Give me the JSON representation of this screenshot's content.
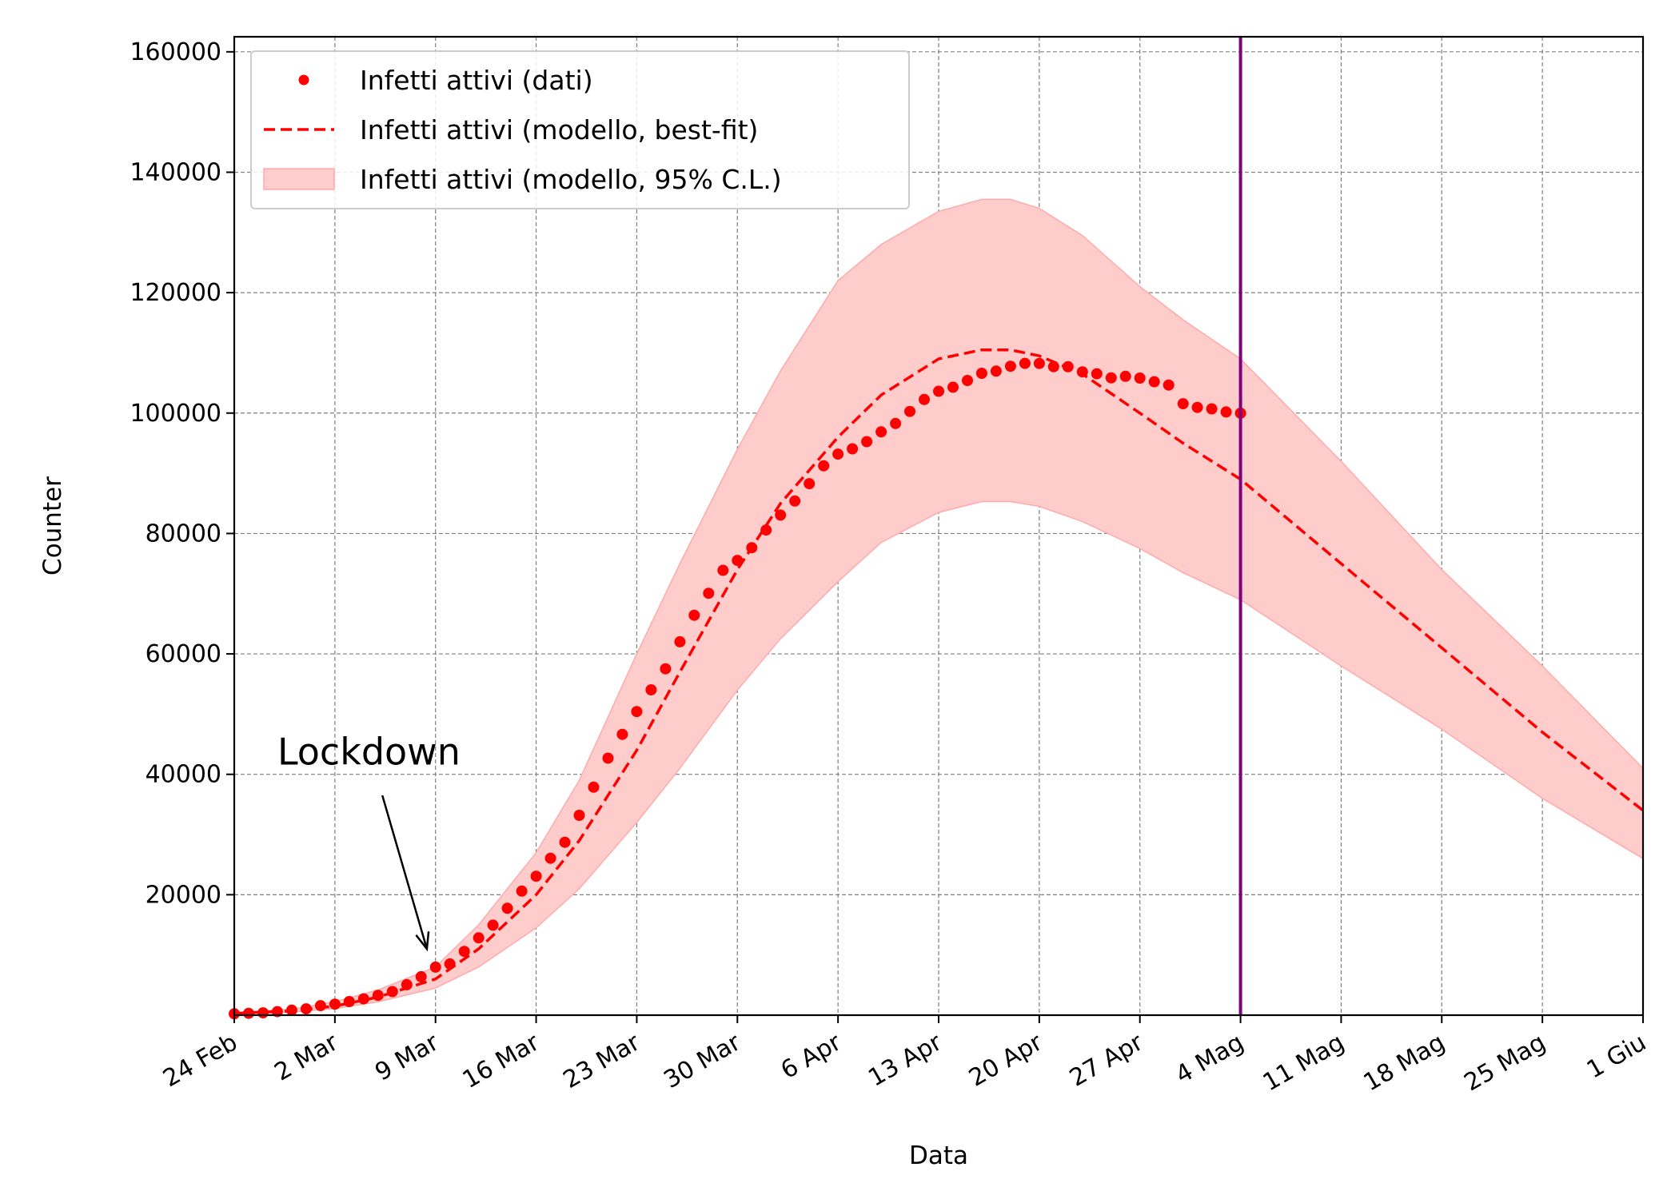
{
  "chart_data": {
    "type": "line",
    "xlabel": "Data",
    "ylabel": "Counter",
    "xlim": [
      0,
      98
    ],
    "ylim": [
      0,
      162500
    ],
    "grid": true,
    "legend_placement": "top-left",
    "x_ticks": [
      {
        "day": 0,
        "label": "24 Feb"
      },
      {
        "day": 7,
        "label": "2 Mar"
      },
      {
        "day": 14,
        "label": "9 Mar"
      },
      {
        "day": 21,
        "label": "16 Mar"
      },
      {
        "day": 28,
        "label": "23 Mar"
      },
      {
        "day": 35,
        "label": "30 Mar"
      },
      {
        "day": 42,
        "label": "6 Apr"
      },
      {
        "day": 49,
        "label": "13 Apr"
      },
      {
        "day": 56,
        "label": "20 Apr"
      },
      {
        "day": 63,
        "label": "27 Apr"
      },
      {
        "day": 70,
        "label": "4 Mag"
      },
      {
        "day": 77,
        "label": "11 Mag"
      },
      {
        "day": 84,
        "label": "18 Mag"
      },
      {
        "day": 91,
        "label": "25 Mag"
      },
      {
        "day": 98,
        "label": "1 Giu"
      }
    ],
    "y_ticks": [
      20000,
      40000,
      60000,
      80000,
      100000,
      120000,
      140000,
      160000
    ],
    "legend": [
      {
        "key": "data",
        "label": "Infetti attivi (dati)"
      },
      {
        "key": "fit",
        "label": "Infetti attivi (modello, best-fit)"
      },
      {
        "key": "band",
        "label": "Infetti attivi (modello, 95% C.L.)"
      }
    ],
    "colors": {
      "data": "#ff0000",
      "fit": "#ff0000",
      "band": "#ffcccc",
      "band_edge": "#ffaaaa",
      "vline": "#800080",
      "grid": "#808080"
    },
    "series": [
      {
        "key": "data",
        "name": "Infetti attivi (dati)",
        "x": [
          0,
          1,
          2,
          3,
          4,
          5,
          6,
          7,
          8,
          9,
          10,
          11,
          12,
          13,
          14,
          15,
          16,
          17,
          18,
          19,
          20,
          21,
          22,
          23,
          24,
          25,
          26,
          27,
          28,
          29,
          30,
          31,
          32,
          33,
          34,
          35,
          36,
          37,
          38,
          39,
          40,
          41,
          42,
          43,
          44,
          45,
          46,
          47,
          48,
          49,
          50,
          51,
          52,
          53,
          54,
          55,
          56,
          57,
          58,
          59,
          60,
          61,
          62,
          63,
          64,
          65,
          66,
          67,
          68,
          69,
          70
        ],
        "values": [
          221,
          311,
          385,
          588,
          821,
          1049,
          1577,
          1835,
          2263,
          2706,
          3296,
          3916,
          5061,
          6387,
          7985,
          8514,
          10590,
          12839,
          14955,
          17750,
          20603,
          23073,
          26062,
          28710,
          33190,
          37860,
          42681,
          46638,
          50418,
          54030,
          57521,
          62013,
          66414,
          70065,
          73880,
          75528,
          77635,
          80572,
          83049,
          85388,
          88274,
          91246,
          93187,
          94067,
          95262,
          96877,
          98273,
          100269,
          102253,
          103616,
          104291,
          105418,
          106607,
          106962,
          107771,
          108257,
          108237,
          107709,
          107699,
          106848,
          106527,
          105847,
          106103,
          105813,
          105205,
          104657,
          101551,
          100943,
          100704,
          100179,
          99980
        ]
      },
      {
        "key": "fit",
        "name": "Infetti attivi (modello, best-fit)",
        "x": [
          0,
          4,
          7,
          10,
          14,
          17,
          21,
          24,
          28,
          31,
          35,
          38,
          42,
          45,
          49,
          52,
          54,
          56,
          59,
          63,
          66,
          70,
          77,
          84,
          91,
          98
        ],
        "values": [
          300,
          700,
          1500,
          3000,
          6000,
          11000,
          20000,
          29000,
          44000,
          57000,
          74000,
          85000,
          96000,
          103000,
          109000,
          110500,
          110500,
          109500,
          106500,
          100000,
          95000,
          89000,
          75000,
          61000,
          47000,
          34000
        ]
      },
      {
        "key": "band_upper",
        "name": "",
        "x": [
          0,
          4,
          7,
          10,
          14,
          17,
          21,
          24,
          28,
          31,
          35,
          38,
          42,
          45,
          49,
          52,
          54,
          56,
          59,
          63,
          66,
          70,
          77,
          84,
          91,
          98
        ],
        "values": [
          400,
          1000,
          2200,
          4200,
          8000,
          15000,
          27000,
          39000,
          60000,
          75000,
          94000,
          107000,
          122000,
          128000,
          133500,
          135500,
          135500,
          134000,
          129500,
          121000,
          115500,
          109000,
          92000,
          74000,
          58000,
          41000
        ]
      },
      {
        "key": "band_lower",
        "name": "",
        "x": [
          0,
          4,
          7,
          10,
          14,
          17,
          21,
          24,
          28,
          31,
          35,
          38,
          42,
          45,
          49,
          52,
          54,
          56,
          59,
          63,
          66,
          70,
          77,
          84,
          91,
          98
        ],
        "values": [
          200,
          500,
          1100,
          2200,
          4500,
          8000,
          14500,
          21000,
          32000,
          41000,
          54000,
          62500,
          72000,
          78500,
          83500,
          85300,
          85300,
          84500,
          82000,
          77500,
          73500,
          69000,
          58000,
          47500,
          36000,
          26000
        ]
      }
    ],
    "vline": {
      "day": 70
    },
    "annotation": {
      "text": "Lockdown",
      "text_day": 3,
      "text_value": 40000,
      "arrow_from_day": 10.3,
      "arrow_from_value": 36500,
      "arrow_to_day": 13.4,
      "arrow_to_value": 11000
    }
  }
}
